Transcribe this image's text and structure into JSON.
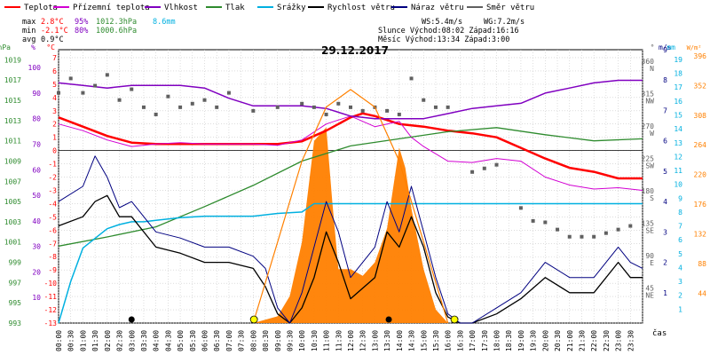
{
  "legend": [
    {
      "label": "Teplota",
      "color": "#ff0000"
    },
    {
      "label": "Přízemní teplota",
      "color": "#d200d2"
    },
    {
      "label": "Vlhkost",
      "color": "#8000c0"
    },
    {
      "label": "Tlak",
      "color": "#2e8b2e"
    },
    {
      "label": "Srážky",
      "color": "#00b0e0"
    },
    {
      "label": "Rychlost větru",
      "color": "#000000"
    },
    {
      "label": "Náraz větru",
      "color": "#000080"
    },
    {
      "label": "Směr větru",
      "color": "#606060"
    }
  ],
  "stats": {
    "max_label": "max",
    "max_temp": "2.8°C",
    "max_hum": "95%",
    "max_press": "1012.3hPa",
    "max_rain": "8.6mm",
    "min_label": "min",
    "min_temp": "-2.1°C",
    "min_hum": "80%",
    "min_press": "1000.6hPa",
    "avg_label": "avg",
    "avg_temp": "0.9°C",
    "ws": "WS:5.4m/s",
    "wg": "WG:7.2m/s",
    "sun": "Slunce Východ:08:02  Západ:16:16",
    "moon": "Měsíc  Východ:13:34  Západ:3:00"
  },
  "chart_data": {
    "type": "line",
    "title": "29.12.2017",
    "xlabel": "čas",
    "x_ticks": [
      "00:00",
      "00:30",
      "01:00",
      "01:30",
      "02:00",
      "02:30",
      "03:00",
      "03:30",
      "04:00",
      "04:30",
      "05:00",
      "05:30",
      "06:00",
      "06:30",
      "07:00",
      "07:30",
      "08:00",
      "08:30",
      "09:00",
      "09:30",
      "10:00",
      "10:30",
      "11:00",
      "11:30",
      "12:00",
      "12:30",
      "13:00",
      "13:30",
      "14:00",
      "14:30",
      "15:00",
      "15:30",
      "16:00",
      "16:30",
      "17:00",
      "17:30",
      "18:00",
      "18:30",
      "19:00",
      "19:30",
      "20:00",
      "20:30",
      "21:00",
      "21:30",
      "22:00",
      "22:30",
      "23:00",
      "23:30"
    ],
    "axes": {
      "pressure_hPa": {
        "label": "hPa",
        "ticks": [
          1019,
          1017,
          1015,
          1013,
          1011,
          1009,
          1007,
          1005,
          1003,
          1001,
          999,
          997,
          995,
          993
        ],
        "range": [
          993,
          1020
        ],
        "color": "#2e8b2e"
      },
      "humidity_pct": {
        "label": "%",
        "ticks": [
          100,
          90,
          80,
          70,
          60,
          50,
          40,
          30,
          20,
          10
        ],
        "range": [
          0,
          107
        ],
        "color": "#8000c0"
      },
      "temperature_C": {
        "label": "°C",
        "ticks": [
          7,
          6,
          5,
          4,
          3,
          2,
          1,
          0,
          -1,
          -2,
          -3,
          -4,
          -5,
          -6,
          -7,
          -8,
          -9,
          -10,
          -11,
          -12,
          -13
        ],
        "range": [
          -13,
          7.6
        ],
        "color": "#ff0000"
      },
      "wind_dir_deg": {
        "label": "°",
        "ticks": [
          360,
          315,
          270,
          225,
          180,
          135,
          90,
          45
        ],
        "tick_names": [
          "N",
          "NW",
          "W",
          "SW",
          "S",
          "SE",
          "E",
          "NE"
        ],
        "range": [
          0,
          380
        ]
      },
      "wind_speed_ms": {
        "label": "m/s",
        "ticks": [
          9,
          8,
          7,
          6,
          5,
          4,
          3,
          2,
          1
        ],
        "range": [
          0,
          9
        ]
      },
      "rain_mm": {
        "label": "mm",
        "ticks": [
          19,
          18,
          17,
          16,
          15,
          14,
          13,
          12,
          11,
          10,
          9,
          8,
          7,
          6,
          5,
          4,
          3,
          2,
          1
        ],
        "range": [
          0,
          19.7
        ],
        "color": "#00b0e0"
      },
      "solar_wm2": {
        "label": "W/m²",
        "ticks": [
          396,
          352,
          308,
          264,
          220,
          176,
          132,
          88,
          44
        ],
        "range": [
          0,
          405
        ],
        "color": "#ff8000"
      }
    },
    "series": [
      {
        "name": "Teplota",
        "axis": "temperature_C",
        "x": [
          0,
          1,
          2,
          3,
          4,
          5,
          6,
          7,
          8,
          9,
          10,
          11,
          12,
          12.5,
          13,
          14,
          15,
          16,
          17,
          18,
          19,
          20,
          21,
          22,
          23,
          24
        ],
        "y": [
          2.5,
          1.8,
          1.1,
          0.6,
          0.5,
          0.5,
          0.5,
          0.5,
          0.5,
          0.5,
          0.7,
          1.5,
          2.5,
          2.8,
          2.6,
          2.0,
          1.8,
          1.5,
          1.3,
          1.0,
          0.2,
          -0.6,
          -1.3,
          -1.6,
          -2.1,
          -2.1
        ]
      },
      {
        "name": "Přízemní teplota",
        "axis": "temperature_C",
        "x": [
          0,
          1,
          2,
          3,
          4,
          5,
          6,
          7,
          8,
          9,
          10,
          11,
          12,
          13,
          14,
          14.5,
          15,
          16,
          17,
          18,
          19,
          20,
          21,
          22,
          23,
          24
        ],
        "y": [
          2.0,
          1.5,
          0.8,
          0.3,
          0.5,
          0.6,
          0.5,
          0.5,
          0.5,
          0.4,
          0.8,
          2.0,
          2.6,
          1.8,
          2.2,
          1.0,
          0.3,
          -0.8,
          -0.9,
          -0.6,
          -0.8,
          -2.0,
          -2.6,
          -2.9,
          -2.8,
          -3.0
        ]
      },
      {
        "name": "Vlhkost",
        "axis": "humidity_pct",
        "x": [
          0,
          1,
          2,
          3,
          4,
          5,
          6,
          7,
          8,
          9,
          10,
          11,
          12,
          13,
          14,
          15,
          16,
          17,
          18,
          19,
          20,
          21,
          22,
          23,
          24
        ],
        "y": [
          94,
          93,
          92,
          93,
          93,
          93,
          92,
          88,
          85,
          85,
          85,
          84,
          81,
          80,
          80,
          80,
          82,
          84,
          85,
          86,
          90,
          92,
          94,
          95,
          95
        ]
      },
      {
        "name": "Tlak",
        "axis": "pressure_hPa",
        "x": [
          0,
          2,
          4,
          6,
          8,
          10,
          12,
          14,
          16,
          18,
          20,
          22,
          24
        ],
        "y": [
          1000.6,
          1001.5,
          1002.5,
          1004.5,
          1006.6,
          1009.0,
          1010.5,
          1011.2,
          1011.9,
          1012.3,
          1011.6,
          1011.0,
          1011.2
        ]
      },
      {
        "name": "Srážky",
        "axis": "rain_mm",
        "x": [
          0,
          0.5,
          1,
          1.5,
          2,
          2.5,
          3,
          3.5,
          4,
          5,
          6,
          7,
          8,
          9,
          10,
          10.5,
          11,
          12,
          13,
          14,
          16,
          18,
          20,
          22,
          24
        ],
        "y": [
          0,
          3.0,
          5.4,
          6.1,
          6.8,
          7.1,
          7.3,
          7.3,
          7.4,
          7.6,
          7.7,
          7.7,
          7.7,
          7.9,
          8.0,
          8.6,
          8.6,
          8.6,
          8.6,
          8.6,
          8.6,
          8.6,
          8.6,
          8.6,
          8.6
        ]
      },
      {
        "name": "Rychlost větru",
        "axis": "wind_speed_ms",
        "x": [
          0,
          1,
          1.5,
          2,
          2.5,
          3,
          4,
          5,
          6,
          7,
          8,
          8.5,
          9,
          9.5,
          10,
          10.5,
          11,
          11.5,
          12,
          13,
          13.5,
          14,
          14.5,
          15,
          15.5,
          16,
          16.5,
          17,
          18,
          19,
          20,
          21,
          22,
          23,
          23.5,
          24
        ],
        "y": [
          3.2,
          3.5,
          4.0,
          4.2,
          3.5,
          3.5,
          2.5,
          2.3,
          2.0,
          2.0,
          1.8,
          1.2,
          0.3,
          0.0,
          0.5,
          1.5,
          3.0,
          2.0,
          0.8,
          1.5,
          3.0,
          2.5,
          3.5,
          2.5,
          1.0,
          0.2,
          0.0,
          0.0,
          0.3,
          0.8,
          1.5,
          1.0,
          1.0,
          2.0,
          1.5,
          1.5
        ]
      },
      {
        "name": "Náraz větru",
        "axis": "wind_speed_ms",
        "x": [
          0,
          1,
          1.5,
          2,
          2.5,
          3,
          4,
          5,
          6,
          7,
          8,
          8.5,
          9,
          9.5,
          10,
          10.5,
          11,
          11.5,
          12,
          13,
          13.5,
          14,
          14.5,
          15,
          15.5,
          16,
          16.5,
          17,
          18,
          19,
          20,
          21,
          22,
          23,
          23.5,
          24
        ],
        "y": [
          4.0,
          4.5,
          5.5,
          4.8,
          3.8,
          4.0,
          3.0,
          2.8,
          2.5,
          2.5,
          2.2,
          1.8,
          0.5,
          0.0,
          1.0,
          2.5,
          4.0,
          3.0,
          1.5,
          2.5,
          4.0,
          3.0,
          4.5,
          3.0,
          1.5,
          0.3,
          0.0,
          0.0,
          0.5,
          1.0,
          2.0,
          1.5,
          1.5,
          2.5,
          2.0,
          1.8
        ]
      },
      {
        "name": "Směr větru",
        "axis": "wind_dir_deg",
        "style": "points",
        "x": [
          0,
          0.5,
          1,
          1.5,
          2,
          2.5,
          3,
          3.5,
          4,
          4.5,
          5,
          5.5,
          6,
          6.5,
          7,
          8,
          9,
          10,
          10.5,
          11,
          11.5,
          12,
          12.5,
          13,
          13.5,
          14,
          14.5,
          15,
          15.5,
          16,
          17,
          17.5,
          18,
          19,
          19.5,
          20,
          20.5,
          21,
          21.5,
          22,
          22.5,
          23,
          23.5
        ],
        "y": [
          320,
          340,
          320,
          330,
          345,
          310,
          325,
          300,
          290,
          315,
          300,
          305,
          310,
          300,
          320,
          295,
          300,
          305,
          300,
          290,
          305,
          300,
          295,
          300,
          295,
          290,
          340,
          310,
          300,
          300,
          210,
          215,
          220,
          160,
          142,
          140,
          130,
          120,
          120,
          120,
          125,
          130,
          135
        ]
      },
      {
        "name": "",
        "axis": "solar_wm2",
        "type": "area",
        "color": "#ff8000",
        "x": [
          8,
          9,
          9.5,
          10,
          10.5,
          11,
          11.25,
          11.5,
          12,
          12.5,
          13,
          13.5,
          14,
          14.25,
          14.5,
          15,
          15.5,
          16
        ],
        "y": [
          0,
          10,
          40,
          120,
          270,
          290,
          180,
          80,
          80,
          70,
          90,
          140,
          260,
          230,
          170,
          80,
          20,
          0
        ]
      },
      {
        "name": "",
        "axis": "solar_wm2",
        "type": "line",
        "color": "#ff8000",
        "x": [
          8,
          9,
          10,
          11,
          12,
          13,
          14,
          15,
          16
        ],
        "y": [
          0,
          120,
          240,
          320,
          346,
          320,
          240,
          120,
          0
        ]
      }
    ],
    "sun_events": [
      {
        "time": 8.03,
        "kind": "sunrise"
      },
      {
        "time": 16.27,
        "kind": "sunset"
      }
    ],
    "moon_events": [
      {
        "time": 3.0,
        "kind": "moonset"
      },
      {
        "time": 13.57,
        "kind": "moonrise"
      }
    ],
    "grid": true
  }
}
